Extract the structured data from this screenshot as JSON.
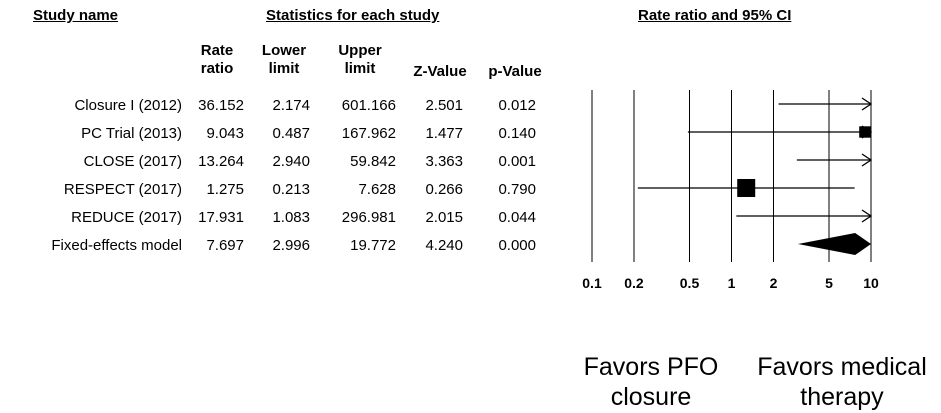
{
  "headers": {
    "study_name": "Study name",
    "statistics": "Statistics for each study",
    "ci": "Rate ratio and 95% CI"
  },
  "columns": {
    "rate_ratio": [
      "Rate",
      "ratio"
    ],
    "lower_limit": [
      "Lower",
      "limit"
    ],
    "upper_limit": [
      "Upper",
      "limit"
    ],
    "z_value": "Z-Value",
    "p_value": "p-Value"
  },
  "favors": {
    "left": [
      "Favors PFO",
      "closure"
    ],
    "right": [
      "Favors medical",
      "therapy"
    ]
  },
  "chart_data": {
    "type": "forest",
    "scale": "log",
    "xlim": [
      0.1,
      10
    ],
    "x_ticks": [
      "0.1",
      "0.2",
      "0.5",
      "1",
      "2",
      "5",
      "10"
    ],
    "x_tick_values": [
      0.1,
      0.2,
      0.5,
      1,
      2,
      5,
      10
    ],
    "studies": [
      {
        "name": "Closure I (2012)",
        "rate_ratio": "36.152",
        "lower": "2.174",
        "upper": "601.166",
        "z": "2.501",
        "p": "0.012",
        "weight": 0
      },
      {
        "name": "PC Trial (2013)",
        "rate_ratio": "9.043",
        "lower": "0.487",
        "upper": "167.962",
        "z": "1.477",
        "p": "0.140",
        "weight": 0.45
      },
      {
        "name": "CLOSE (2017)",
        "rate_ratio": "13.264",
        "lower": "2.940",
        "upper": "59.842",
        "z": "3.363",
        "p": "0.001",
        "weight": 0
      },
      {
        "name": "RESPECT (2017)",
        "rate_ratio": "1.275",
        "lower": "0.213",
        "upper": "7.628",
        "z": "0.266",
        "p": "0.790",
        "weight": 1
      },
      {
        "name": "REDUCE (2017)",
        "rate_ratio": "17.931",
        "lower": "1.083",
        "upper": "296.981",
        "z": "2.015",
        "p": "0.044",
        "weight": 0
      }
    ],
    "summary": {
      "name": "Fixed-effects model",
      "rate_ratio": "7.697",
      "lower": "2.996",
      "upper": "19.772",
      "z": "4.240",
      "p": "0.000"
    }
  }
}
